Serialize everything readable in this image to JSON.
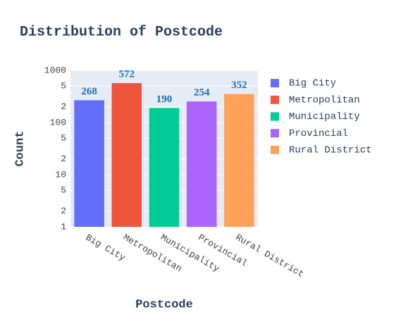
{
  "chart_data": {
    "type": "bar",
    "title": "Distribution of Postcode",
    "x_label": "Postcode",
    "y_label": "Count",
    "categories": [
      "Big City",
      "Metropolitan",
      "Municipality",
      "Provincial",
      "Rural District"
    ],
    "series": [
      {
        "name": "Big City",
        "color": "#636efa",
        "values": [
          268,
          null,
          null,
          null,
          null
        ]
      },
      {
        "name": "Metropolitan",
        "color": "#ef553b",
        "values": [
          null,
          572,
          null,
          null,
          null
        ]
      },
      {
        "name": "Municipality",
        "color": "#00cc96",
        "values": [
          null,
          null,
          190,
          null,
          null
        ]
      },
      {
        "name": "Provincial",
        "color": "#ab63fa",
        "values": [
          null,
          null,
          null,
          254,
          null
        ]
      },
      {
        "name": "Rural District",
        "color": "#ffa15a",
        "values": [
          null,
          null,
          null,
          null,
          352
        ]
      }
    ],
    "value_label_color": "#1f6fb0",
    "log_y": true,
    "ylim": [
      1,
      1000
    ],
    "yticks": [
      1,
      2,
      5,
      10,
      {
        "value": 20,
        "label": "2"
      },
      {
        "value": 50,
        "label": "5"
      },
      100,
      {
        "value": 200,
        "label": "2"
      },
      {
        "value": 500,
        "label": "5"
      },
      1000
    ],
    "grid": true,
    "legend": "right"
  }
}
